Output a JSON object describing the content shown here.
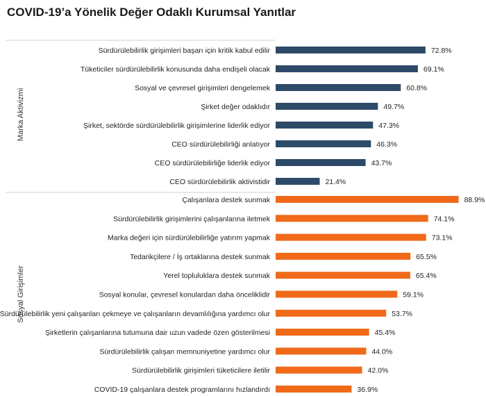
{
  "chart_data": {
    "type": "bar",
    "orientation": "horizontal",
    "title": "COVID-19’a Yönelik Değer Odaklı Kurumsal Yanıtlar",
    "xlabel": "",
    "ylabel": "",
    "value_format": "percent",
    "xlim": [
      0,
      100
    ],
    "grid": false,
    "groups": [
      {
        "name": "Marka Aktivizmi",
        "color": "#2d4a68",
        "categories": [
          "Sürdürülebilirlik girişimleri başarı için kritik kabul edilir",
          "Tüketiciler sürdürülebilirlik konusunda daha endişeli olacak",
          "Sosyal ve çevresel girişimleri dengelemek",
          "Şirket değer odaklıdır",
          "Şirket, sektörde sürdürülebilirlik girişimlerine liderlik ediyor",
          "CEO sürdürülebilirliği anlatıyor",
          "CEO sürdürülebilirliğe liderlik ediyor",
          "CEO sürdürülebilirlik aktivistidir"
        ],
        "values": [
          72.8,
          69.1,
          60.8,
          49.7,
          47.3,
          46.3,
          43.7,
          21.4
        ]
      },
      {
        "name": "Sosyal Girişimler",
        "color": "#f06a1a",
        "categories": [
          "Çalışanlara destek sunmak",
          "Sürdürülebilirlik girişimlerini çalışanlarına iletmek",
          "Marka değeri için sürdürülebilirliğe yatırım yapmak",
          "Tedarikçilere / İş ortaklarına destek sunmak",
          "Yerel topluluklara destek sunmak",
          "Sosyal konular, çevresel konulardan daha önceliklidir",
          "Sürdürülebilirlik yeni çalışanları çekmeye ve çalışanların devamlılığına yardımcı olur",
          "Şirketlerin çalışanlarına tutumuna dair uzun vadede özen gösterilmesi",
          "Sürdürülebilirlik çalışan memnuniyetine yardımcı olur",
          "Sürdürülebilirlik girişimleri tüketicilere iletilir",
          "COVID-19 çalışanlara destek programlarını hızlandırdı"
        ],
        "values": [
          88.9,
          74.1,
          73.1,
          65.5,
          65.4,
          59.1,
          53.7,
          45.4,
          44.0,
          42.0,
          36.9
        ]
      }
    ]
  }
}
